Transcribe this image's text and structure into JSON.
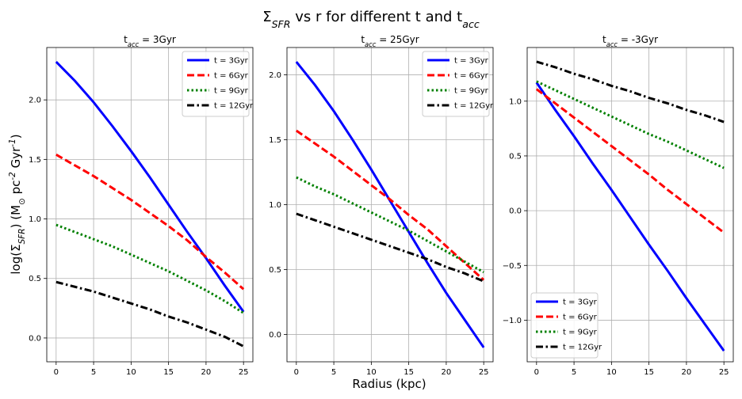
{
  "figure": {
    "suptitle": "Σ_SFR vs r for different t and t_acc",
    "xlabel": "Radius (kpc)",
    "ylabel": "log(Σ_SFR) (M_⊙ pc^-2 Gyr^-1)"
  },
  "styles": {
    "colors": {
      "t3": "#0000ff",
      "t6": "#ff0000",
      "t9": "#008000",
      "t12": "#000000"
    },
    "dashes": {
      "t3": "solid",
      "t6": "dashed",
      "t9": "dotted",
      "t12": "dashdot"
    },
    "grid_color": "#b0b0b0"
  },
  "chart_data": [
    {
      "type": "line",
      "title": "t_acc = 3Gyr",
      "xlim": [
        -1.25,
        26.25
      ],
      "ylim": [
        -0.2,
        2.44
      ],
      "xticks": [
        0,
        5,
        10,
        15,
        20,
        25
      ],
      "yticks": [
        0.0,
        0.5,
        1.0,
        1.5,
        2.0
      ],
      "ytick_labels": [
        "0.0",
        "0.5",
        "1.0",
        "1.5",
        "2.0"
      ],
      "grid": true,
      "legend": "upper right",
      "x": [
        0,
        2.5,
        5,
        7.5,
        10,
        12.5,
        15,
        17.5,
        20,
        22.5,
        25
      ],
      "series": [
        {
          "name": "t = 3Gyr",
          "key": "t3",
          "values": [
            2.32,
            2.16,
            1.98,
            1.78,
            1.57,
            1.35,
            1.12,
            0.89,
            0.67,
            0.44,
            0.22
          ]
        },
        {
          "name": "t = 6Gyr",
          "key": "t6",
          "values": [
            1.54,
            1.45,
            1.36,
            1.26,
            1.16,
            1.05,
            0.94,
            0.82,
            0.68,
            0.55,
            0.41
          ]
        },
        {
          "name": "t = 9Gyr",
          "key": "t9",
          "values": [
            0.95,
            0.89,
            0.83,
            0.77,
            0.7,
            0.63,
            0.56,
            0.48,
            0.4,
            0.31,
            0.21
          ]
        },
        {
          "name": "t = 12Gyr",
          "key": "t12",
          "values": [
            0.47,
            0.43,
            0.39,
            0.34,
            0.29,
            0.24,
            0.18,
            0.13,
            0.07,
            0.01,
            -0.07
          ]
        }
      ]
    },
    {
      "type": "line",
      "title": "t_acc = 25Gyr",
      "xlim": [
        -1.25,
        26.25
      ],
      "ylim": [
        -0.21,
        2.21
      ],
      "xticks": [
        0,
        5,
        10,
        15,
        20,
        25
      ],
      "yticks": [
        0.0,
        0.5,
        1.0,
        1.5,
        2.0
      ],
      "ytick_labels": [
        "0.0",
        "0.5",
        "1.0",
        "1.5",
        "2.0"
      ],
      "grid": true,
      "legend": "upper right",
      "x": [
        0,
        2.5,
        5,
        7.5,
        10,
        12.5,
        15,
        17.5,
        20,
        22.5,
        25
      ],
      "series": [
        {
          "name": "t = 3Gyr",
          "key": "t3",
          "values": [
            2.1,
            1.92,
            1.72,
            1.5,
            1.27,
            1.03,
            0.79,
            0.55,
            0.32,
            0.11,
            -0.1
          ]
        },
        {
          "name": "t = 6Gyr",
          "key": "t6",
          "values": [
            1.57,
            1.47,
            1.37,
            1.26,
            1.15,
            1.04,
            0.92,
            0.81,
            0.68,
            0.55,
            0.42
          ]
        },
        {
          "name": "t = 9Gyr",
          "key": "t9",
          "values": [
            1.21,
            1.14,
            1.08,
            1.01,
            0.94,
            0.87,
            0.8,
            0.72,
            0.64,
            0.56,
            0.48
          ]
        },
        {
          "name": "t = 12Gyr",
          "key": "t12",
          "values": [
            0.93,
            0.88,
            0.83,
            0.78,
            0.73,
            0.68,
            0.63,
            0.58,
            0.52,
            0.47,
            0.41
          ]
        }
      ]
    },
    {
      "type": "line",
      "title": "t_acc = -3Gyr",
      "xlim": [
        -1.25,
        26.25
      ],
      "ylim": [
        -1.38,
        1.49
      ],
      "xticks": [
        0,
        5,
        10,
        15,
        20,
        25
      ],
      "yticks": [
        -1.0,
        -0.5,
        0.0,
        0.5,
        1.0
      ],
      "ytick_labels": [
        "−1.0",
        "−0.5",
        "0.0",
        "0.5",
        "1.0"
      ],
      "grid": true,
      "legend": "lower left",
      "x": [
        0,
        2.5,
        5,
        7.5,
        10,
        12.5,
        15,
        17.5,
        20,
        22.5,
        25
      ],
      "series": [
        {
          "name": "t = 3Gyr",
          "key": "t3",
          "values": [
            1.17,
            0.92,
            0.68,
            0.43,
            0.19,
            -0.06,
            -0.31,
            -0.55,
            -0.8,
            -1.04,
            -1.28
          ]
        },
        {
          "name": "t = 6Gyr",
          "key": "t6",
          "values": [
            1.11,
            0.98,
            0.85,
            0.72,
            0.59,
            0.46,
            0.33,
            0.19,
            0.06,
            -0.07,
            -0.2
          ]
        },
        {
          "name": "t = 9Gyr",
          "key": "t9",
          "values": [
            1.18,
            1.1,
            1.02,
            0.94,
            0.86,
            0.78,
            0.7,
            0.63,
            0.55,
            0.47,
            0.39
          ]
        },
        {
          "name": "t = 12Gyr",
          "key": "t12",
          "values": [
            1.36,
            1.31,
            1.25,
            1.2,
            1.14,
            1.09,
            1.03,
            0.98,
            0.92,
            0.87,
            0.81
          ]
        }
      ]
    }
  ]
}
